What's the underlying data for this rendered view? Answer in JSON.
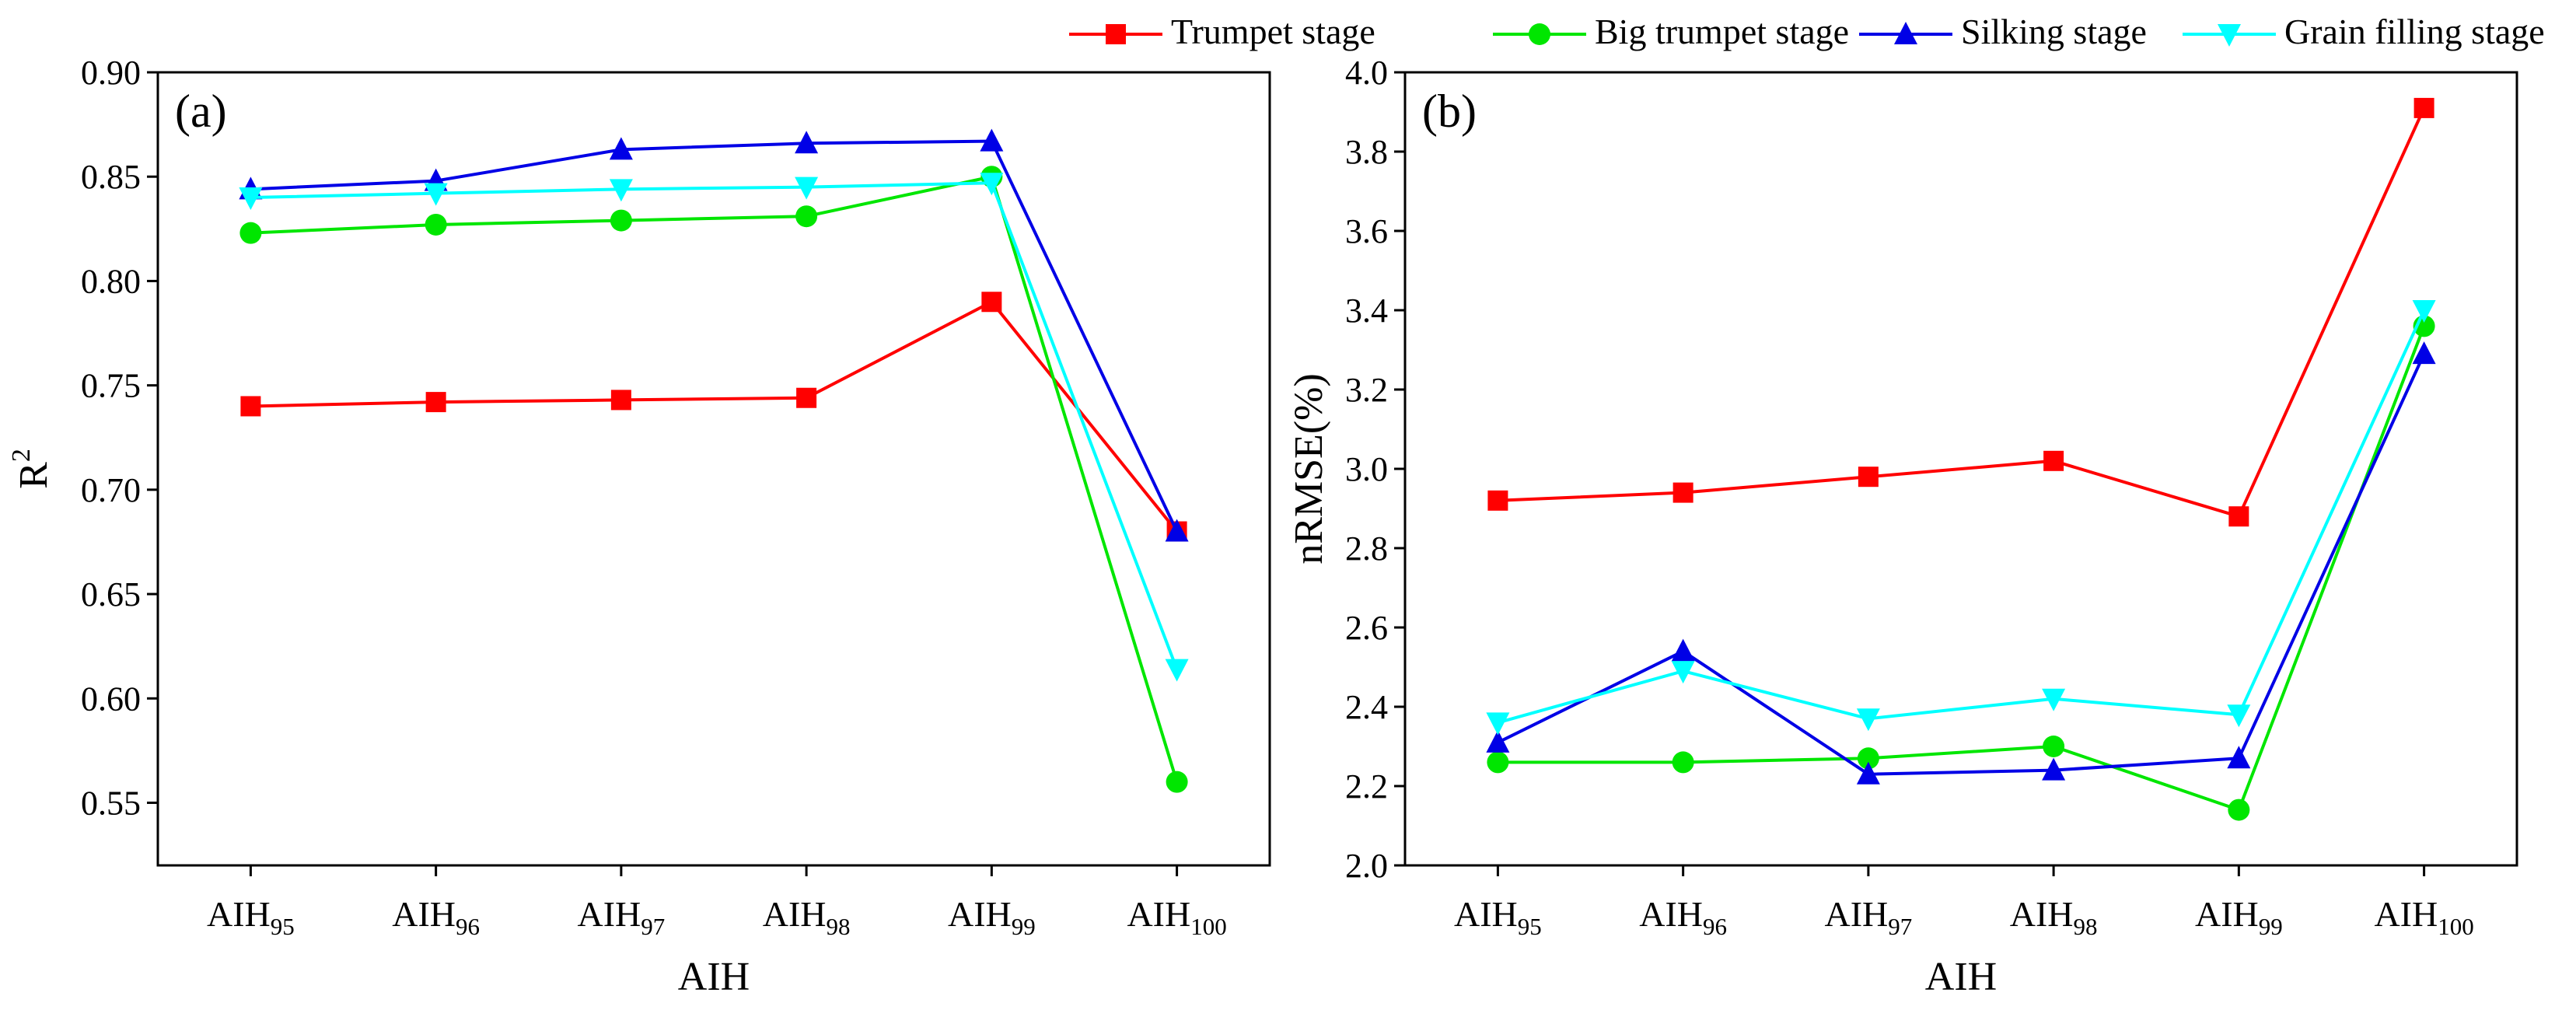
{
  "legend": [
    {
      "name": "Trumpet stage",
      "color": "#ff0000",
      "marker": "square"
    },
    {
      "name": "Big trumpet stage",
      "color": "#00e600",
      "marker": "circle"
    },
    {
      "name": "Silking stage",
      "color": "#0000e6",
      "marker": "triangle-up"
    },
    {
      "name": "Grain filling stage",
      "color": "#00ffff",
      "marker": "triangle-down"
    }
  ],
  "chart_data": [
    {
      "type": "line",
      "panel_label": "(a)",
      "xlabel": "AIH",
      "ylabel": "R",
      "ylabel_sup": "2",
      "categories": [
        {
          "base": "AIH",
          "sub": "95"
        },
        {
          "base": "AIH",
          "sub": "96"
        },
        {
          "base": "AIH",
          "sub": "97"
        },
        {
          "base": "AIH",
          "sub": "98"
        },
        {
          "base": "AIH",
          "sub": "99"
        },
        {
          "base": "AIH",
          "sub": "100"
        }
      ],
      "ylim": [
        0.52,
        0.9
      ],
      "yticks": [
        "0.55",
        "0.60",
        "0.65",
        "0.70",
        "0.75",
        "0.80",
        "0.85",
        "0.90"
      ],
      "series": [
        {
          "name": "Trumpet stage",
          "color": "#ff0000",
          "marker": "square",
          "values": [
            0.74,
            0.742,
            0.743,
            0.744,
            0.79,
            0.68
          ]
        },
        {
          "name": "Big trumpet stage",
          "color": "#00e600",
          "marker": "circle",
          "values": [
            0.823,
            0.827,
            0.829,
            0.831,
            0.85,
            0.56
          ]
        },
        {
          "name": "Silking stage",
          "color": "#0000e6",
          "marker": "triangle-up",
          "values": [
            0.844,
            0.848,
            0.863,
            0.866,
            0.867,
            0.68
          ]
        },
        {
          "name": "Grain filling stage",
          "color": "#00ffff",
          "marker": "triangle-down",
          "values": [
            0.84,
            0.842,
            0.844,
            0.845,
            0.847,
            0.614
          ]
        }
      ]
    },
    {
      "type": "line",
      "panel_label": "(b)",
      "xlabel": "AIH",
      "ylabel": "nRMSE(%)",
      "ylabel_sup": "",
      "categories": [
        {
          "base": "AIH",
          "sub": "95"
        },
        {
          "base": "AIH",
          "sub": "96"
        },
        {
          "base": "AIH",
          "sub": "97"
        },
        {
          "base": "AIH",
          "sub": "98"
        },
        {
          "base": "AIH",
          "sub": "99"
        },
        {
          "base": "AIH",
          "sub": "100"
        }
      ],
      "ylim": [
        2.0,
        4.0
      ],
      "yticks": [
        "2.0",
        "2.2",
        "2.4",
        "2.6",
        "2.8",
        "3.0",
        "3.2",
        "3.4",
        "3.6",
        "3.8",
        "4.0"
      ],
      "series": [
        {
          "name": "Trumpet stage",
          "color": "#ff0000",
          "marker": "square",
          "values": [
            2.92,
            2.94,
            2.98,
            3.02,
            2.88,
            3.91
          ]
        },
        {
          "name": "Big trumpet stage",
          "color": "#00e600",
          "marker": "circle",
          "values": [
            2.26,
            2.26,
            2.27,
            2.3,
            2.14,
            3.36
          ]
        },
        {
          "name": "Silking stage",
          "color": "#0000e6",
          "marker": "triangle-up",
          "values": [
            2.31,
            2.54,
            2.23,
            2.24,
            2.27,
            3.29
          ]
        },
        {
          "name": "Grain filling stage",
          "color": "#00ffff",
          "marker": "triangle-down",
          "values": [
            2.36,
            2.49,
            2.37,
            2.42,
            2.38,
            3.4
          ]
        }
      ]
    }
  ]
}
